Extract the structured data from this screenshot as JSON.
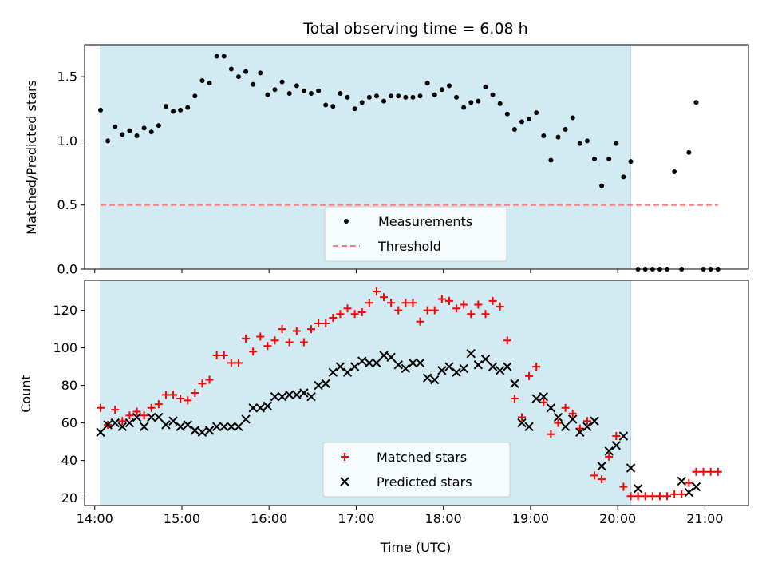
{
  "chart_data": [
    {
      "type": "scatter",
      "title": "Total observing time = 6.08 h",
      "ylabel": "Matched/Predicted stars",
      "xlabel": "",
      "xlim": [
        "13:53",
        "21:30"
      ],
      "ylim": [
        0,
        1.75
      ],
      "x_ticks": [
        "14:00",
        "15:00",
        "16:00",
        "17:00",
        "18:00",
        "19:00",
        "20:00",
        "21:00"
      ],
      "y_ticks": [
        "0.0",
        "0.5",
        "1.0",
        "1.5"
      ],
      "shaded_interval": [
        "14:04",
        "20:09"
      ],
      "shade_color": "#add8e6",
      "legend": {
        "position": "lower-center",
        "entries": [
          "Measurements",
          "Threshold"
        ]
      },
      "threshold": {
        "name": "Threshold",
        "y": 0.5,
        "x_start": "14:04",
        "x_end": "21:09",
        "color": "#ff7f7f"
      },
      "series": [
        {
          "name": "Measurements",
          "marker": "dot",
          "color": "#000000",
          "points": [
            [
              "14:04",
              1.24
            ],
            [
              "14:09",
              1.0
            ],
            [
              "14:14",
              1.11
            ],
            [
              "14:19",
              1.05
            ],
            [
              "14:24",
              1.08
            ],
            [
              "14:29",
              1.04
            ],
            [
              "14:34",
              1.1
            ],
            [
              "14:39",
              1.07
            ],
            [
              "14:44",
              1.12
            ],
            [
              "14:49",
              1.27
            ],
            [
              "14:54",
              1.23
            ],
            [
              "14:59",
              1.24
            ],
            [
              "15:04",
              1.26
            ],
            [
              "15:09",
              1.35
            ],
            [
              "15:14",
              1.47
            ],
            [
              "15:19",
              1.45
            ],
            [
              "15:24",
              1.66
            ],
            [
              "15:29",
              1.66
            ],
            [
              "15:34",
              1.56
            ],
            [
              "15:39",
              1.5
            ],
            [
              "15:44",
              1.54
            ],
            [
              "15:49",
              1.44
            ],
            [
              "15:54",
              1.53
            ],
            [
              "15:59",
              1.36
            ],
            [
              "16:04",
              1.4
            ],
            [
              "16:09",
              1.46
            ],
            [
              "16:14",
              1.37
            ],
            [
              "16:19",
              1.43
            ],
            [
              "16:24",
              1.39
            ],
            [
              "16:29",
              1.37
            ],
            [
              "16:34",
              1.39
            ],
            [
              "16:39",
              1.28
            ],
            [
              "16:44",
              1.27
            ],
            [
              "16:49",
              1.37
            ],
            [
              "16:54",
              1.34
            ],
            [
              "16:59",
              1.25
            ],
            [
              "17:04",
              1.3
            ],
            [
              "17:09",
              1.34
            ],
            [
              "17:14",
              1.35
            ],
            [
              "17:19",
              1.31
            ],
            [
              "17:24",
              1.35
            ],
            [
              "17:29",
              1.35
            ],
            [
              "17:34",
              1.34
            ],
            [
              "17:39",
              1.34
            ],
            [
              "17:44",
              1.35
            ],
            [
              "17:49",
              1.45
            ],
            [
              "17:54",
              1.36
            ],
            [
              "17:59",
              1.4
            ],
            [
              "18:04",
              1.43
            ],
            [
              "18:09",
              1.34
            ],
            [
              "18:14",
              1.26
            ],
            [
              "18:19",
              1.3
            ],
            [
              "18:24",
              1.31
            ],
            [
              "18:29",
              1.42
            ],
            [
              "18:34",
              1.36
            ],
            [
              "18:39",
              1.29
            ],
            [
              "18:44",
              1.21
            ],
            [
              "18:49",
              1.09
            ],
            [
              "18:54",
              1.15
            ],
            [
              "18:59",
              1.17
            ],
            [
              "19:04",
              1.22
            ],
            [
              "19:09",
              1.04
            ],
            [
              "19:14",
              0.85
            ],
            [
              "19:19",
              1.03
            ],
            [
              "19:24",
              1.09
            ],
            [
              "19:29",
              1.18
            ],
            [
              "19:34",
              0.98
            ],
            [
              "19:39",
              1.0
            ],
            [
              "19:44",
              0.86
            ],
            [
              "19:49",
              0.65
            ],
            [
              "19:54",
              0.86
            ],
            [
              "19:59",
              0.98
            ],
            [
              "20:04",
              0.72
            ],
            [
              "20:09",
              0.84
            ],
            [
              "20:14",
              0.0
            ],
            [
              "20:19",
              0.0
            ],
            [
              "20:24",
              0.0
            ],
            [
              "20:29",
              0.0
            ],
            [
              "20:34",
              0.0
            ],
            [
              "20:39",
              0.76
            ],
            [
              "20:44",
              0.0
            ],
            [
              "20:49",
              0.91
            ],
            [
              "20:54",
              1.3
            ],
            [
              "20:59",
              0.0
            ],
            [
              "21:04",
              0.0
            ],
            [
              "21:09",
              0.0
            ]
          ]
        }
      ]
    },
    {
      "type": "scatter",
      "title": "",
      "ylabel": "Count",
      "xlabel": "Time (UTC)",
      "xlim": [
        "13:53",
        "21:30"
      ],
      "ylim": [
        16,
        136
      ],
      "x_ticks": [
        "14:00",
        "15:00",
        "16:00",
        "17:00",
        "18:00",
        "19:00",
        "20:00",
        "21:00"
      ],
      "y_ticks": [
        "20",
        "40",
        "60",
        "80",
        "100",
        "120"
      ],
      "shaded_interval": [
        "14:04",
        "20:09"
      ],
      "shade_color": "#add8e6",
      "legend": {
        "position": "lower-center",
        "entries": [
          "Matched stars",
          "Predicted stars"
        ]
      },
      "series": [
        {
          "name": "Matched stars",
          "marker": "plus",
          "color": "#ff0000",
          "points": [
            [
              "14:04",
              68
            ],
            [
              "14:09",
              59
            ],
            [
              "14:14",
              67
            ],
            [
              "14:19",
              61
            ],
            [
              "14:24",
              64
            ],
            [
              "14:29",
              66
            ],
            [
              "14:34",
              64
            ],
            [
              "14:39",
              68
            ],
            [
              "14:44",
              70
            ],
            [
              "14:49",
              75
            ],
            [
              "14:54",
              75
            ],
            [
              "14:59",
              73
            ],
            [
              "15:04",
              72
            ],
            [
              "15:09",
              76
            ],
            [
              "15:14",
              81
            ],
            [
              "15:19",
              83
            ],
            [
              "15:24",
              96
            ],
            [
              "15:29",
              96
            ],
            [
              "15:34",
              92
            ],
            [
              "15:39",
              92
            ],
            [
              "15:44",
              105
            ],
            [
              "15:49",
              98
            ],
            [
              "15:54",
              106
            ],
            [
              "15:59",
              101
            ],
            [
              "16:04",
              104
            ],
            [
              "16:09",
              110
            ],
            [
              "16:14",
              103
            ],
            [
              "16:19",
              109
            ],
            [
              "16:24",
              103
            ],
            [
              "16:29",
              110
            ],
            [
              "16:34",
              113
            ],
            [
              "16:39",
              113
            ],
            [
              "16:44",
              116
            ],
            [
              "16:49",
              118
            ],
            [
              "16:54",
              121
            ],
            [
              "16:59",
              118
            ],
            [
              "17:04",
              119
            ],
            [
              "17:09",
              124
            ],
            [
              "17:14",
              130
            ],
            [
              "17:19",
              127
            ],
            [
              "17:24",
              124
            ],
            [
              "17:29",
              120
            ],
            [
              "17:34",
              124
            ],
            [
              "17:39",
              124
            ],
            [
              "17:44",
              114
            ],
            [
              "17:49",
              120
            ],
            [
              "17:54",
              120
            ],
            [
              "17:59",
              126
            ],
            [
              "18:04",
              125
            ],
            [
              "18:09",
              121
            ],
            [
              "18:14",
              123
            ],
            [
              "18:19",
              118
            ],
            [
              "18:24",
              123
            ],
            [
              "18:29",
              118
            ],
            [
              "18:34",
              125
            ],
            [
              "18:39",
              122
            ],
            [
              "18:44",
              104
            ],
            [
              "18:49",
              73
            ],
            [
              "18:54",
              63
            ],
            [
              "18:59",
              85
            ],
            [
              "19:04",
              90
            ],
            [
              "19:09",
              71
            ],
            [
              "19:14",
              54
            ],
            [
              "19:19",
              60
            ],
            [
              "19:24",
              68
            ],
            [
              "19:29",
              65
            ],
            [
              "19:34",
              57
            ],
            [
              "19:39",
              61
            ],
            [
              "19:44",
              32
            ],
            [
              "19:49",
              30
            ],
            [
              "19:54",
              42
            ],
            [
              "19:59",
              53
            ],
            [
              "20:04",
              26
            ],
            [
              "20:09",
              21
            ],
            [
              "20:14",
              21
            ],
            [
              "20:19",
              21
            ],
            [
              "20:24",
              21
            ],
            [
              "20:29",
              21
            ],
            [
              "20:34",
              21
            ],
            [
              "20:39",
              22
            ],
            [
              "20:44",
              22
            ],
            [
              "20:49",
              28
            ],
            [
              "20:54",
              34
            ],
            [
              "20:59",
              34
            ],
            [
              "21:04",
              34
            ],
            [
              "21:09",
              34
            ]
          ]
        },
        {
          "name": "Predicted stars",
          "marker": "x",
          "color": "#000000",
          "points": [
            [
              "14:04",
              55
            ],
            [
              "14:09",
              59
            ],
            [
              "14:14",
              60
            ],
            [
              "14:19",
              58
            ],
            [
              "14:24",
              60
            ],
            [
              "14:29",
              63
            ],
            [
              "14:34",
              58
            ],
            [
              "14:39",
              63
            ],
            [
              "14:44",
              63
            ],
            [
              "14:49",
              59
            ],
            [
              "14:54",
              61
            ],
            [
              "14:59",
              58
            ],
            [
              "15:04",
              59
            ],
            [
              "15:09",
              56
            ],
            [
              "15:14",
              55
            ],
            [
              "15:19",
              56
            ],
            [
              "15:24",
              58
            ],
            [
              "15:29",
              58
            ],
            [
              "15:34",
              58
            ],
            [
              "15:39",
              58
            ],
            [
              "15:44",
              62
            ],
            [
              "15:49",
              68
            ],
            [
              "15:54",
              68
            ],
            [
              "15:59",
              69
            ],
            [
              "16:04",
              74
            ],
            [
              "16:09",
              74
            ],
            [
              "16:14",
              75
            ],
            [
              "16:19",
              75
            ],
            [
              "16:24",
              76
            ],
            [
              "16:29",
              74
            ],
            [
              "16:34",
              80
            ],
            [
              "16:39",
              81
            ],
            [
              "16:44",
              87
            ],
            [
              "16:49",
              90
            ],
            [
              "16:54",
              87
            ],
            [
              "16:59",
              90
            ],
            [
              "17:04",
              93
            ],
            [
              "17:09",
              92
            ],
            [
              "17:14",
              92
            ],
            [
              "17:19",
              96
            ],
            [
              "17:24",
              95
            ],
            [
              "17:29",
              91
            ],
            [
              "17:34",
              89
            ],
            [
              "17:39",
              92
            ],
            [
              "17:44",
              92
            ],
            [
              "17:49",
              84
            ],
            [
              "17:54",
              83
            ],
            [
              "17:59",
              88
            ],
            [
              "18:04",
              90
            ],
            [
              "18:09",
              87
            ],
            [
              "18:14",
              89
            ],
            [
              "18:19",
              97
            ],
            [
              "18:24",
              91
            ],
            [
              "18:29",
              94
            ],
            [
              "18:34",
              90
            ],
            [
              "18:39",
              88
            ],
            [
              "18:44",
              90
            ],
            [
              "18:49",
              81
            ],
            [
              "18:54",
              60
            ],
            [
              "18:59",
              58
            ],
            [
              "19:04",
              73
            ],
            [
              "19:09",
              74
            ],
            [
              "19:14",
              68
            ],
            [
              "19:19",
              63
            ],
            [
              "19:24",
              58
            ],
            [
              "19:29",
              62
            ],
            [
              "19:34",
              55
            ],
            [
              "19:39",
              58
            ],
            [
              "19:44",
              61
            ],
            [
              "19:49",
              37
            ],
            [
              "19:54",
              45
            ],
            [
              "19:59",
              48
            ],
            [
              "20:04",
              53
            ],
            [
              "20:09",
              36
            ],
            [
              "20:14",
              25
            ],
            [
              "20:44",
              29
            ],
            [
              "20:49",
              23
            ],
            [
              "20:54",
              26
            ]
          ]
        }
      ]
    }
  ]
}
